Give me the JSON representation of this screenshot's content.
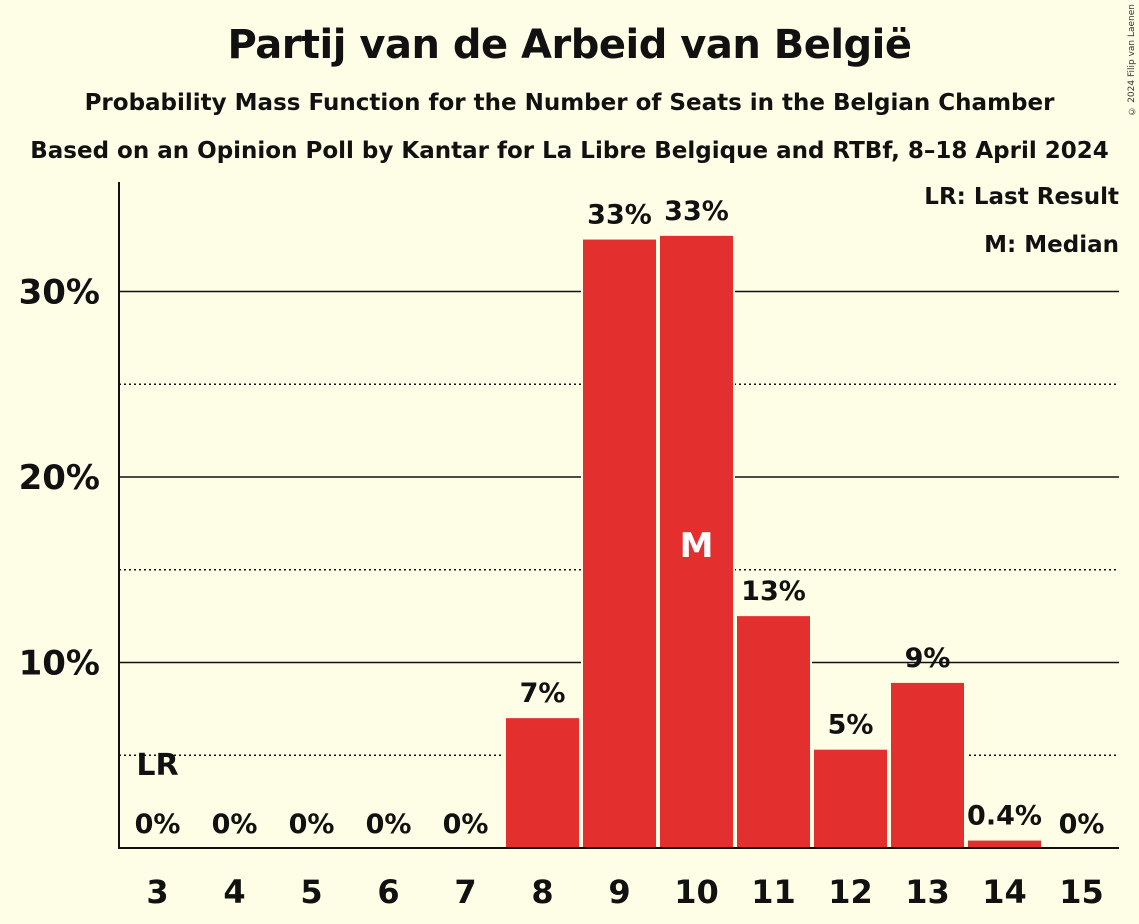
{
  "chart_data": {
    "type": "bar",
    "title": "Partij van de Arbeid van België",
    "subtitle": "Probability Mass Function for the Number of Seats in the Belgian Chamber",
    "subtitle2": "Based on an Opinion Poll by Kantar for La Libre Belgique and RTBf, 8–18 April 2024",
    "categories": [
      "3",
      "4",
      "5",
      "6",
      "7",
      "8",
      "9",
      "10",
      "11",
      "12",
      "13",
      "14",
      "15"
    ],
    "values": [
      0,
      0,
      0,
      0,
      0,
      7.0,
      32.8,
      33.0,
      12.5,
      5.3,
      8.9,
      0.4,
      0
    ],
    "labels": [
      "0%",
      "0%",
      "0%",
      "0%",
      "0%",
      "7%",
      "33%",
      "33%",
      "13%",
      "5%",
      "9%",
      "0.4%",
      "0%"
    ],
    "ylim": [
      0,
      36
    ],
    "yticks": [
      10,
      20,
      30
    ],
    "ytick_labels": [
      "10%",
      "20%",
      "30%"
    ],
    "dotted_lines": [
      5,
      15,
      25
    ],
    "bar_color": "#e3302f",
    "last_result_category": "3",
    "last_result_marker": "LR",
    "median_category": "10",
    "median_marker": "M",
    "legend": [
      "LR: Last Result",
      "M: Median"
    ],
    "copyright": "© 2024 Filip van Laenen"
  }
}
